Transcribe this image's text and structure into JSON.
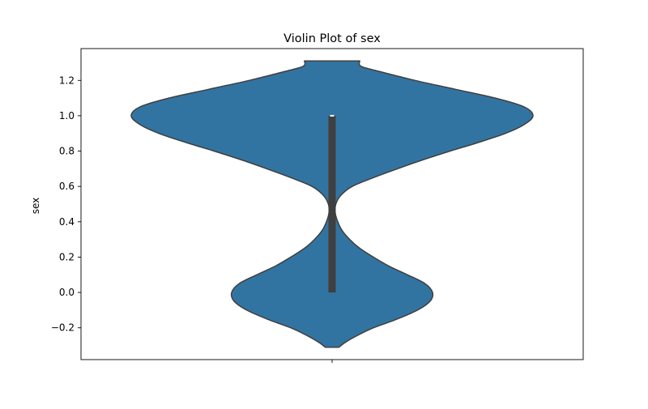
{
  "chart_data": {
    "type": "violin",
    "title": "Violin Plot of sex",
    "xlabel": "",
    "ylabel": "sex",
    "ylim": [
      -0.38,
      1.38
    ],
    "yticks": [
      -0.2,
      0.0,
      0.2,
      0.4,
      0.6,
      0.8,
      1.0,
      1.2
    ],
    "ytick_labels": [
      "−0.2",
      "0.0",
      "0.2",
      "0.4",
      "0.6",
      "0.8",
      "1.0",
      "1.2"
    ],
    "grid": false,
    "legend": "none",
    "colors": {
      "violin_fill": "#3274a1",
      "violin_edge": "#3f3f3f",
      "box": "#3f3f3f",
      "median": "#ffffff"
    },
    "density_profile": [
      {
        "y": -0.31,
        "half_width": 0.055
      },
      {
        "y": -0.28,
        "half_width": 0.11
      },
      {
        "y": -0.24,
        "half_width": 0.21
      },
      {
        "y": -0.2,
        "half_width": 0.33
      },
      {
        "y": -0.15,
        "half_width": 0.52
      },
      {
        "y": -0.1,
        "half_width": 0.68
      },
      {
        "y": -0.05,
        "half_width": 0.78
      },
      {
        "y": 0.0,
        "half_width": 0.8
      },
      {
        "y": 0.05,
        "half_width": 0.74
      },
      {
        "y": 0.1,
        "half_width": 0.6
      },
      {
        "y": 0.15,
        "half_width": 0.45
      },
      {
        "y": 0.2,
        "half_width": 0.33
      },
      {
        "y": 0.25,
        "half_width": 0.22
      },
      {
        "y": 0.3,
        "half_width": 0.14
      },
      {
        "y": 0.35,
        "half_width": 0.08
      },
      {
        "y": 0.4,
        "half_width": 0.045
      },
      {
        "y": 0.45,
        "half_width": 0.025
      },
      {
        "y": 0.5,
        "half_width": 0.03
      },
      {
        "y": 0.55,
        "half_width": 0.07
      },
      {
        "y": 0.6,
        "half_width": 0.16
      },
      {
        "y": 0.65,
        "half_width": 0.33
      },
      {
        "y": 0.7,
        "half_width": 0.52
      },
      {
        "y": 0.75,
        "half_width": 0.72
      },
      {
        "y": 0.8,
        "half_width": 0.94
      },
      {
        "y": 0.85,
        "half_width": 1.17
      },
      {
        "y": 0.9,
        "half_width": 1.38
      },
      {
        "y": 0.95,
        "half_width": 1.53
      },
      {
        "y": 1.0,
        "half_width": 1.6
      },
      {
        "y": 1.05,
        "half_width": 1.53
      },
      {
        "y": 1.1,
        "half_width": 1.3
      },
      {
        "y": 1.15,
        "half_width": 0.98
      },
      {
        "y": 1.2,
        "half_width": 0.66
      },
      {
        "y": 1.25,
        "half_width": 0.38
      },
      {
        "y": 1.28,
        "half_width": 0.23
      },
      {
        "y": 1.31,
        "half_width": 0.22
      }
    ],
    "box": {
      "q1": 0.0,
      "median": 1.0,
      "q3": 1.0,
      "whisker_low": 0.0,
      "whisker_high": 1.0
    }
  }
}
